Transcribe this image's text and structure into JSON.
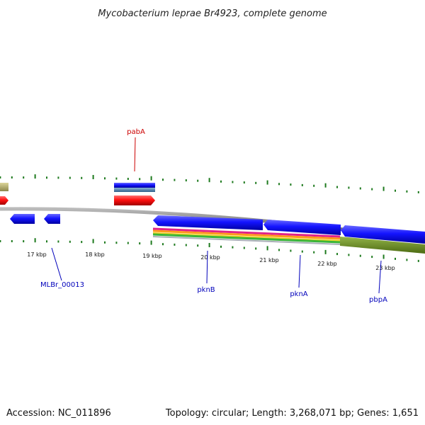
{
  "title": "Mycobacterium leprae Br4923, complete genome",
  "footer": {
    "accession": "Accession: NC_011896",
    "summary": "Topology: circular; Length: 3,268,071 bp; Genes: 1,651"
  },
  "ticks": [
    "17 kbp",
    "18 kbp",
    "19 kbp",
    "20 kbp",
    "21 kbp",
    "22 kbp",
    "23 kbp"
  ],
  "genes": [
    {
      "name": "pabA",
      "color": "#cc0000"
    },
    {
      "name": "MLBr_00013",
      "color": "#0000bb"
    },
    {
      "name": "pknB",
      "color": "#0000bb"
    },
    {
      "name": "pknA",
      "color": "#0000bb"
    },
    {
      "name": "pbpA",
      "color": "#0000bb"
    }
  ],
  "colors": {
    "cds_blue": "#1a1aff",
    "cds_red": "#ff1a1a",
    "backbone": "#888888",
    "tick": "#1e7a1e",
    "olive": "#6b8e23",
    "khaki": "#bdb76b",
    "steel": "#4682b4"
  }
}
